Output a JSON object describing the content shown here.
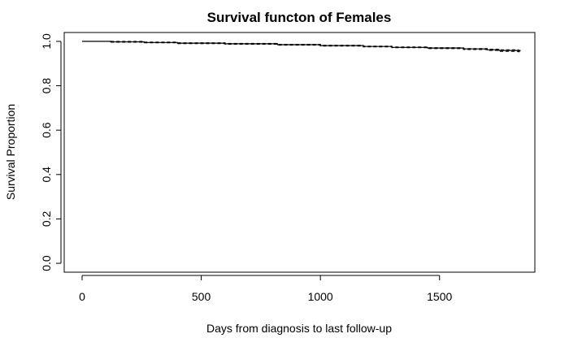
{
  "chart_data": {
    "type": "line",
    "title": "Survival functon of Females",
    "xlabel": "Days from diagnosis to last follow-up",
    "ylabel": "Survival Proportion",
    "xlim": [
      -75,
      1900
    ],
    "ylim": [
      -0.04,
      1.04
    ],
    "xticks": [
      0,
      500,
      1000,
      1500
    ],
    "xtick_labels": [
      "0",
      "500",
      "1000",
      "1500"
    ],
    "yticks": [
      0.0,
      0.2,
      0.4,
      0.6,
      0.8,
      1.0
    ],
    "ytick_labels": [
      "0.0",
      "0.2",
      "0.4",
      "0.6",
      "0.8",
      "1.0"
    ],
    "grid": false,
    "legend": "none",
    "series": [
      {
        "style": "step",
        "color": "#000000",
        "x": [
          0,
          120,
          260,
          400,
          600,
          820,
          1000,
          1180,
          1300,
          1450,
          1600,
          1700,
          1750,
          1830
        ],
        "y": [
          1.0,
          0.998,
          0.995,
          0.992,
          0.989,
          0.985,
          0.981,
          0.977,
          0.973,
          0.97,
          0.966,
          0.962,
          0.959,
          0.957
        ]
      },
      {
        "style": "dashed-step",
        "color": "#000000",
        "x": [
          120,
          260,
          400,
          600,
          820,
          1000,
          1180,
          1300,
          1450,
          1600,
          1700,
          1750,
          1830
        ],
        "y": [
          0.996,
          0.993,
          0.99,
          0.987,
          0.983,
          0.979,
          0.975,
          0.971,
          0.967,
          0.963,
          0.959,
          0.955,
          0.953
        ]
      },
      {
        "style": "dashed-step",
        "color": "#000000",
        "x": [
          120,
          260,
          400,
          600,
          820,
          1000,
          1180,
          1300,
          1450,
          1600,
          1700,
          1750,
          1830
        ],
        "y": [
          1.0,
          0.997,
          0.994,
          0.991,
          0.987,
          0.983,
          0.979,
          0.975,
          0.972,
          0.968,
          0.965,
          0.962,
          0.96
        ]
      }
    ]
  }
}
